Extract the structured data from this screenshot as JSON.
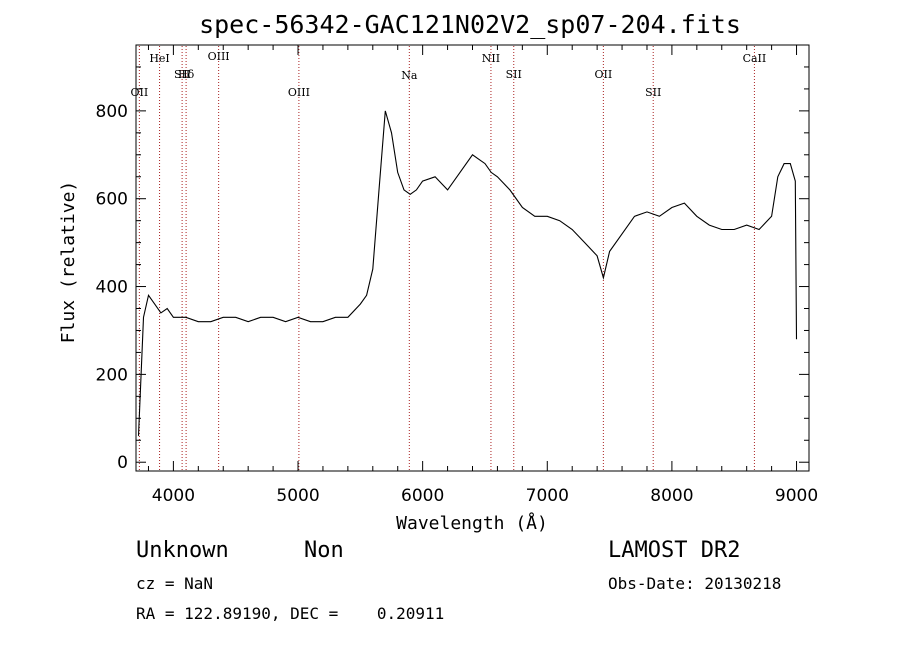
{
  "chart_data": {
    "type": "line",
    "title": "spec-56342-GAC121N02V2_sp07-204.fits",
    "xlabel": "Wavelength (Å)",
    "ylabel": "Flux (relative)",
    "xlim": [
      3700,
      9100
    ],
    "ylim": [
      -20,
      950
    ],
    "xticks": [
      4000,
      5000,
      6000,
      7000,
      8000,
      9000
    ],
    "yticks": [
      0,
      200,
      400,
      600,
      800
    ],
    "grid": false,
    "line_color": "#000000",
    "marker_color": "#aa2222",
    "series": [
      {
        "x": [
          3720,
          3760,
          3800,
          3850,
          3900,
          3950,
          4000,
          4050,
          4100,
          4200,
          4300,
          4400,
          4500,
          4600,
          4700,
          4800,
          4900,
          5000,
          5100,
          5200,
          5300,
          5400,
          5500,
          5550,
          5600,
          5650,
          5700,
          5750,
          5800,
          5850,
          5900,
          5950,
          6000,
          6100,
          6200,
          6300,
          6400,
          6450,
          6500,
          6550,
          6600,
          6700,
          6800,
          6900,
          7000,
          7100,
          7200,
          7300,
          7400,
          7450,
          7500,
          7600,
          7700,
          7800,
          7900,
          8000,
          8100,
          8200,
          8300,
          8400,
          8500,
          8600,
          8700,
          8800,
          8850,
          8900,
          8950,
          8990,
          9000
        ],
        "y": [
          60,
          330,
          380,
          360,
          340,
          350,
          330,
          330,
          330,
          320,
          320,
          330,
          330,
          320,
          330,
          330,
          320,
          330,
          320,
          320,
          330,
          330,
          360,
          380,
          440,
          620,
          800,
          750,
          660,
          620,
          610,
          620,
          640,
          650,
          620,
          660,
          700,
          690,
          680,
          660,
          650,
          620,
          580,
          560,
          560,
          550,
          530,
          500,
          470,
          420,
          480,
          520,
          560,
          570,
          560,
          580,
          590,
          560,
          540,
          530,
          530,
          540,
          530,
          560,
          650,
          680,
          680,
          640,
          280
        ]
      }
    ],
    "lines": [
      {
        "name": "OII",
        "x": 3727
      },
      {
        "name": "HeI",
        "x": 3889
      },
      {
        "name": "SII",
        "x": 4070
      },
      {
        "name": "Hδ",
        "x": 4102
      },
      {
        "name": "OIII",
        "x": 4363
      },
      {
        "name": "OIII",
        "x": 5007
      },
      {
        "name": "Na",
        "x": 5893
      },
      {
        "name": "NII",
        "x": 6548
      },
      {
        "name": "SII",
        "x": 6731
      },
      {
        "name": "OII",
        "x": 7450
      },
      {
        "name": "SII",
        "x": 7850
      },
      {
        "name": "CaII",
        "x": 8662
      }
    ]
  },
  "info": {
    "object_class": "Unknown",
    "subclass": "Non",
    "cz": "cz = NaN",
    "coords": "RA = 122.89190, DEC =    0.20911",
    "survey": "LAMOST DR2",
    "obs_date": "Obs-Date: 20130218"
  }
}
